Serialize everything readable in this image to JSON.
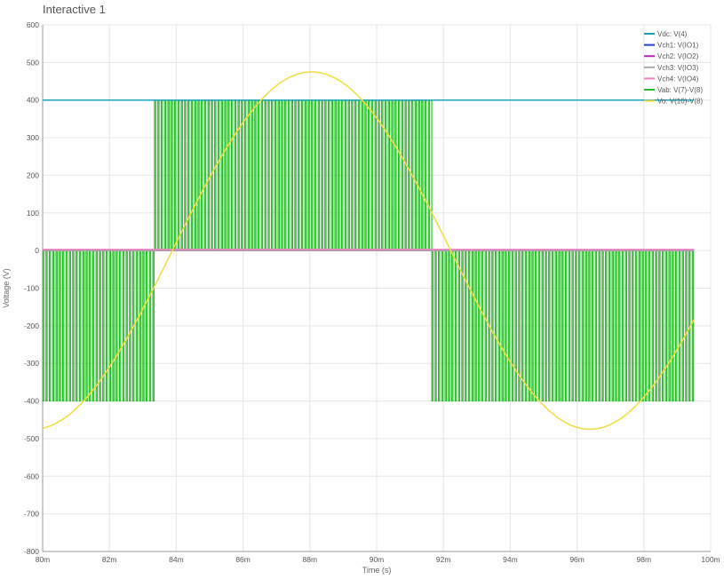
{
  "window": {
    "title": "Interactive 1"
  },
  "chart_data": {
    "type": "line",
    "title": "Interactive 1",
    "xlabel": "Time (s)",
    "ylabel": "Voltage (V)",
    "xlim": [
      80,
      100
    ],
    "ylim": [
      -800,
      600
    ],
    "x_unit_suffix": "m",
    "xticks": [
      80,
      82,
      84,
      86,
      88,
      90,
      92,
      94,
      96,
      98,
      100
    ],
    "yticks": [
      600,
      500,
      400,
      300,
      200,
      100,
      0,
      -100,
      -200,
      -300,
      -400,
      -500,
      -600,
      -700,
      -800
    ],
    "grid": true,
    "legend_position": "top-right",
    "series": [
      {
        "name": "Vdc: V(4)",
        "color": "#1aa3b8",
        "kind": "constant",
        "value": 400,
        "x_range": [
          80,
          99.5
        ]
      },
      {
        "name": "Vch1: V(IO1)",
        "color": "#1f3fcf",
        "kind": "constant",
        "value": 0,
        "x_range": [
          80,
          99.5
        ]
      },
      {
        "name": "Vch2: V(IO2)",
        "color": "#c020c0",
        "kind": "constant",
        "value": 0,
        "x_range": [
          80,
          99.5
        ]
      },
      {
        "name": "Vch3: V(IO3)",
        "color": "#a8a8a8",
        "kind": "constant",
        "value": 0,
        "x_range": [
          80,
          99.5
        ]
      },
      {
        "name": "Vch4: V(IO4)",
        "color": "#f080c0",
        "kind": "constant",
        "value": 3,
        "x_range": [
          80,
          99.5
        ]
      },
      {
        "name": "Vab: V(7)-V(8)",
        "color": "#22bb22",
        "kind": "pwm",
        "segments": [
          {
            "x_start": 80.0,
            "x_end": 83.35,
            "low": -400,
            "high": 0
          },
          {
            "x_start": 83.35,
            "x_end": 91.65,
            "low": 0,
            "high": 400
          },
          {
            "x_start": 91.65,
            "x_end": 99.5,
            "low": -400,
            "high": 0
          }
        ],
        "pulse_period": 0.1
      },
      {
        "name": "Vo: V(10)-V(8)",
        "color": "#f0dc40",
        "kind": "sine",
        "amplitude": 475,
        "period": 16.67,
        "peak_x": 88.05,
        "x_range": [
          80,
          99.5
        ]
      }
    ]
  }
}
